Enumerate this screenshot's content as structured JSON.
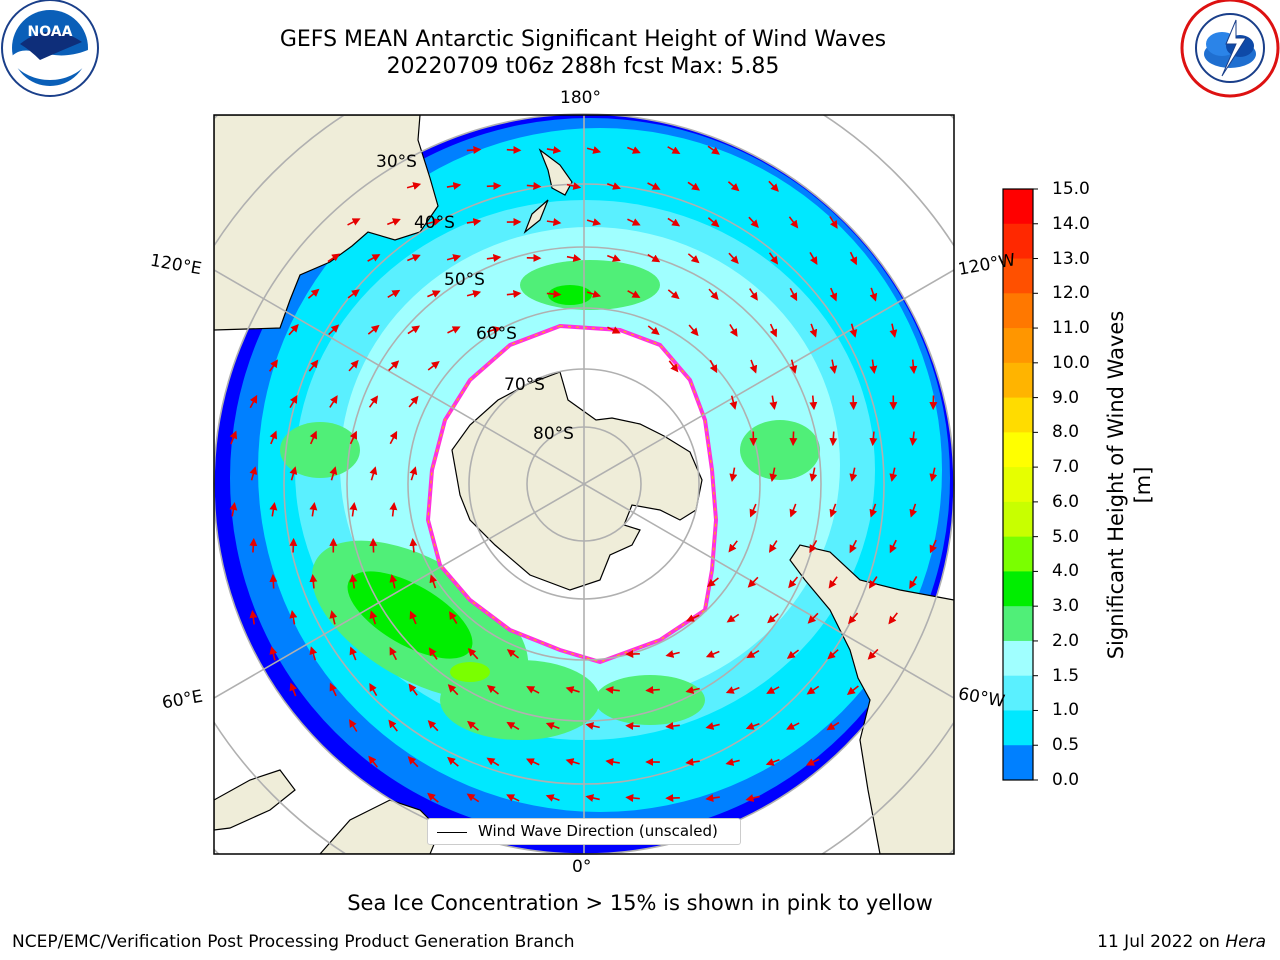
{
  "header": {
    "title_line1": "GEFS MEAN Antarctic Significant Height of Wind Waves",
    "title_line2": "20220709 t06z 288h fcst   Max: 5.85"
  },
  "logos": {
    "left": "noaa-logo",
    "right": "national-weather-service-logo",
    "left_text": "NOAA",
    "left_ring_text": "NATIONAL OCEANIC AND ATMOSPHERIC ADMINISTRATION · U.S. DEPARTMENT OF COMMERCE",
    "right_ring_text": "NATIONAL WEATHER SERVICE"
  },
  "map": {
    "projection": "south-polar-stereographic",
    "longitude_labels": {
      "top": "180°",
      "bottom": "0°",
      "upper_left": "120°E",
      "lower_left": "60°E",
      "upper_right": "120°W",
      "lower_right": "60°W"
    },
    "latitude_labels": [
      "30°S",
      "40°S",
      "50°S",
      "60°S",
      "70°S",
      "80°S"
    ],
    "legend_entry": "Wind Wave Direction (unscaled)"
  },
  "colorbar": {
    "label": "Significant Height of Wind Waves [m]",
    "ticks": [
      "15.0",
      "14.0",
      "13.0",
      "12.0",
      "11.0",
      "10.0",
      "9.0",
      "8.0",
      "7.0",
      "6.0",
      "5.0",
      "4.0",
      "3.0",
      "2.0",
      "1.5",
      "1.0",
      "0.5",
      "0.0"
    ],
    "colors": [
      "#ff0000",
      "#ff2800",
      "#ff5000",
      "#ff7800",
      "#ff9600",
      "#ffb400",
      "#ffdc00",
      "#ffff00",
      "#e6ff00",
      "#c8ff00",
      "#7aff00",
      "#00ee00",
      "#50ef78",
      "#a0ffff",
      "#5af0ff",
      "#00e8ff",
      "#0080ff",
      "#0000ff"
    ]
  },
  "colors": {
    "land": "#efedd9",
    "ice_shelf": "#ffffff",
    "sea_ice_edge": "#ff33dd",
    "arrow": "#e60000",
    "grid": "#b0b0b0"
  },
  "notes": {
    "sea_ice": "Sea Ice Concentration > 15% is shown in pink to yellow"
  },
  "footer": {
    "left": "NCEP/EMC/Verification Post Processing Product Generation Branch",
    "date": "11 Jul 2022 on ",
    "host": "Hera"
  }
}
